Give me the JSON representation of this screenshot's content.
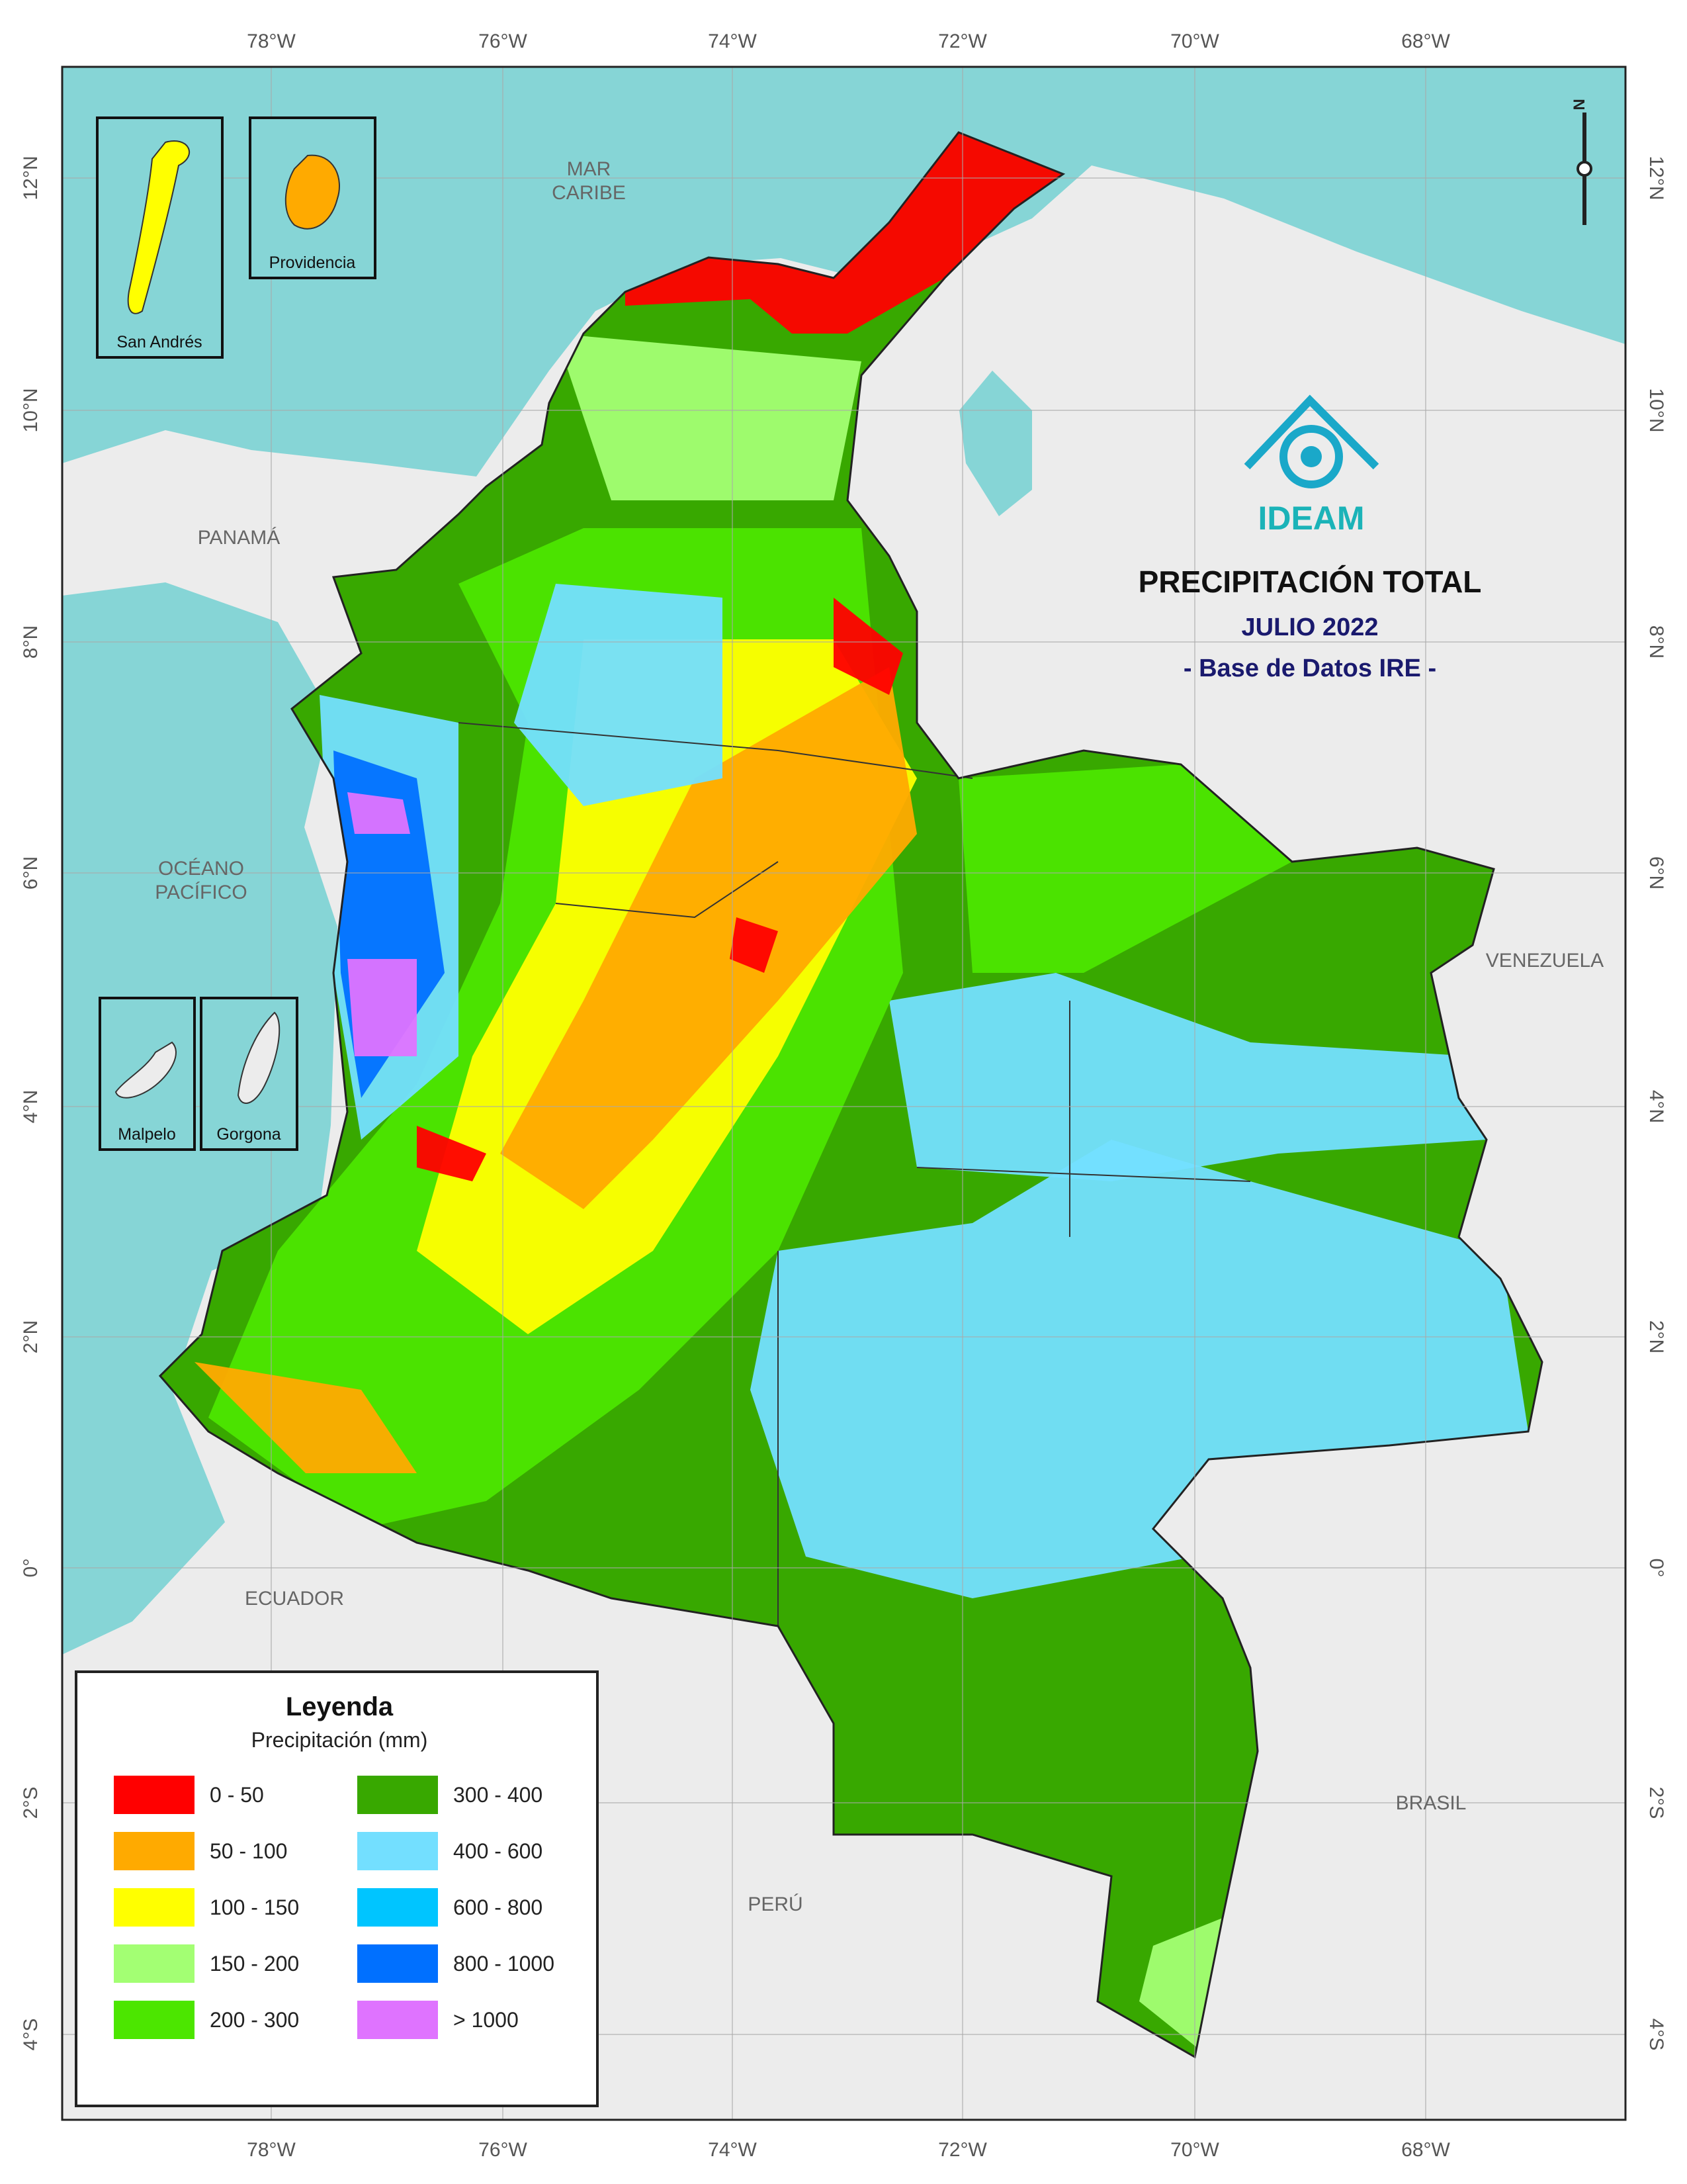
{
  "title": "PRECIPITACIÓN TOTAL",
  "subtitle": "JULIO 2022",
  "source": "- Base de Datos IRE -",
  "logo": "IDEAM",
  "north": "N",
  "longitude_labels": [
    "78°W",
    "76°W",
    "74°W",
    "72°W",
    "70°W",
    "68°W"
  ],
  "latitude_labels": [
    "12°N",
    "10°N",
    "8°N",
    "6°N",
    "4°N",
    "2°N",
    "0°",
    "2°S",
    "4°S"
  ],
  "places": {
    "caribbean": [
      "MAR",
      "CARIBE"
    ],
    "panama": "PANAMÁ",
    "pacific": [
      "OCÉANO",
      "PACÍFICO"
    ],
    "venezuela": "VENEZUELA",
    "ecuador": "ECUADOR",
    "brasil": "BRASIL",
    "peru": "PERÚ"
  },
  "insets": [
    "San Andrés",
    "Providencia",
    "Malpelo",
    "Gorgona"
  ],
  "legend": {
    "title": "Leyenda",
    "subtitle": "Precipitación (mm)",
    "items": [
      {
        "label": "0 - 50",
        "color": "#ff0000"
      },
      {
        "label": "50 - 100",
        "color": "#ffaa00"
      },
      {
        "label": "100 - 150",
        "color": "#ffff00"
      },
      {
        "label": "150 - 200",
        "color": "#a3ff73"
      },
      {
        "label": "200 - 300",
        "color": "#4ce600"
      },
      {
        "label": "300 - 400",
        "color": "#38a800"
      },
      {
        "label": "400 - 600",
        "color": "#73dfff"
      },
      {
        "label": "600 - 800",
        "color": "#00c5ff"
      },
      {
        "label": "800 - 1000",
        "color": "#0070ff"
      },
      {
        "label": "> 1000",
        "color": "#df73ff"
      }
    ]
  }
}
